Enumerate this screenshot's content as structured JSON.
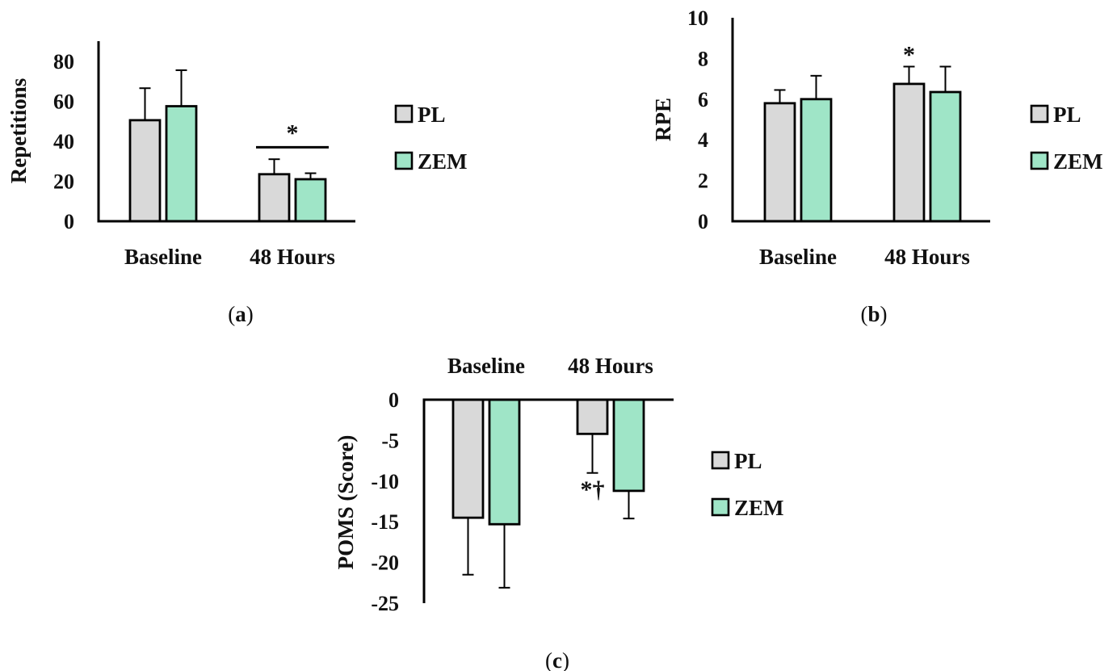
{
  "colors": {
    "PL": "#d9d9d9",
    "ZEM": "#9fe5c7",
    "axis": "#000000"
  },
  "chart_data": [
    {
      "type": "bar",
      "panel": "a",
      "caption": "a",
      "ylabel": "Repetitions",
      "categories": [
        "Baseline",
        "48 Hours"
      ],
      "ylim": [
        0,
        90
      ],
      "yticks": [
        0,
        20,
        40,
        60,
        80
      ],
      "legend_position": "right",
      "series": [
        {
          "name": "PL",
          "values": [
            50.5,
            23.5
          ],
          "errors": [
            16,
            7.5
          ]
        },
        {
          "name": "ZEM",
          "values": [
            57.5,
            21
          ],
          "errors": [
            18,
            3
          ]
        }
      ],
      "annotations": [
        {
          "text": "*",
          "category": 1,
          "bracket": true,
          "y": 37
        }
      ]
    },
    {
      "type": "bar",
      "panel": "b",
      "caption": "b",
      "ylabel": "RPE",
      "categories": [
        "Baseline",
        "48 Hours"
      ],
      "ylim": [
        0,
        10
      ],
      "yticks": [
        0,
        2,
        4,
        6,
        8,
        10
      ],
      "legend_position": "right",
      "series": [
        {
          "name": "PL",
          "values": [
            5.8,
            6.75
          ],
          "errors": [
            0.65,
            0.85
          ]
        },
        {
          "name": "ZEM",
          "values": [
            6.0,
            6.35
          ],
          "errors": [
            1.15,
            1.25
          ]
        }
      ],
      "annotations": [
        {
          "text": "*",
          "category": 1,
          "series": 0,
          "y": 8.2
        }
      ]
    },
    {
      "type": "bar",
      "panel": "c",
      "caption": "c",
      "ylabel": "POMS (Score)",
      "categories": [
        "Baseline",
        "48 Hours"
      ],
      "ylim": [
        -25,
        0
      ],
      "yticks": [
        0,
        -5,
        -10,
        -15,
        -20,
        -25
      ],
      "legend_position": "right",
      "series": [
        {
          "name": "PL",
          "values": [
            -14.5,
            -4.2
          ],
          "errors": [
            7,
            4.8
          ]
        },
        {
          "name": "ZEM",
          "values": [
            -15.3,
            -11.2
          ],
          "errors": [
            7.8,
            3.4
          ]
        }
      ],
      "annotations": [
        {
          "text": "*†",
          "category": 1,
          "series": 0,
          "y": -11
        }
      ]
    }
  ]
}
